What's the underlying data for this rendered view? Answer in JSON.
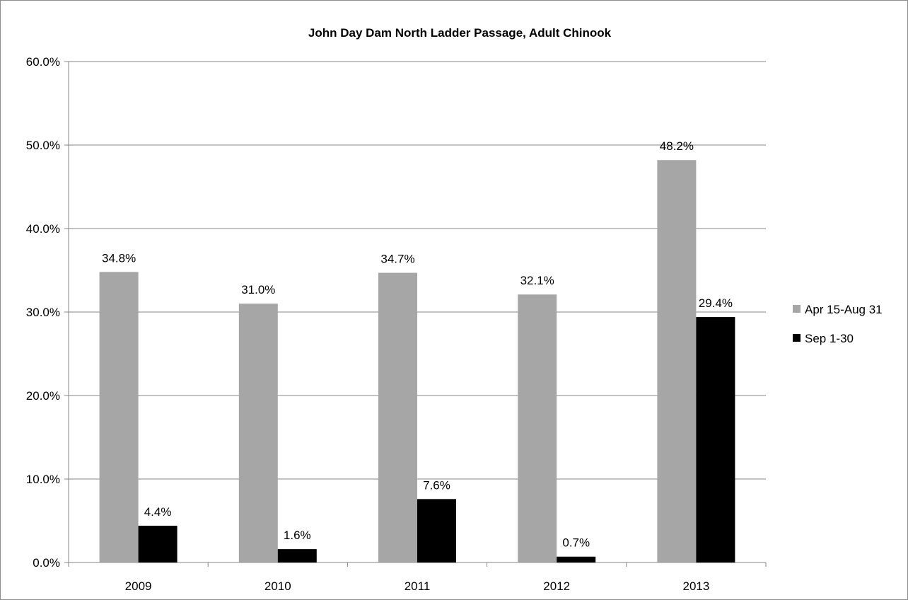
{
  "chart_data": {
    "type": "bar",
    "title": "John Day Dam North Ladder Passage, Adult Chinook",
    "xlabel": "",
    "ylabel": "",
    "categories": [
      "2009",
      "2010",
      "2011",
      "2012",
      "2013"
    ],
    "ylim": [
      0,
      60
    ],
    "yticks": [
      0,
      10,
      20,
      30,
      40,
      50,
      60
    ],
    "ytick_labels": [
      "0.0%",
      "10.0%",
      "20.0%",
      "30.0%",
      "40.0%",
      "50.0%",
      "60.0%"
    ],
    "grid": true,
    "legend_position": "right",
    "series": [
      {
        "name": "Apr 15-Aug 31",
        "color": "#a6a6a6",
        "values": [
          34.8,
          31.0,
          34.7,
          32.1,
          48.2
        ],
        "labels": [
          "34.8%",
          "31.0%",
          "34.7%",
          "32.1%",
          "48.2%"
        ]
      },
      {
        "name": "Sep 1-30",
        "color": "#000000",
        "values": [
          4.4,
          1.6,
          7.6,
          0.7,
          29.4
        ],
        "labels": [
          "4.4%",
          "1.6%",
          "7.6%",
          "0.7%",
          "29.4%"
        ]
      }
    ]
  }
}
